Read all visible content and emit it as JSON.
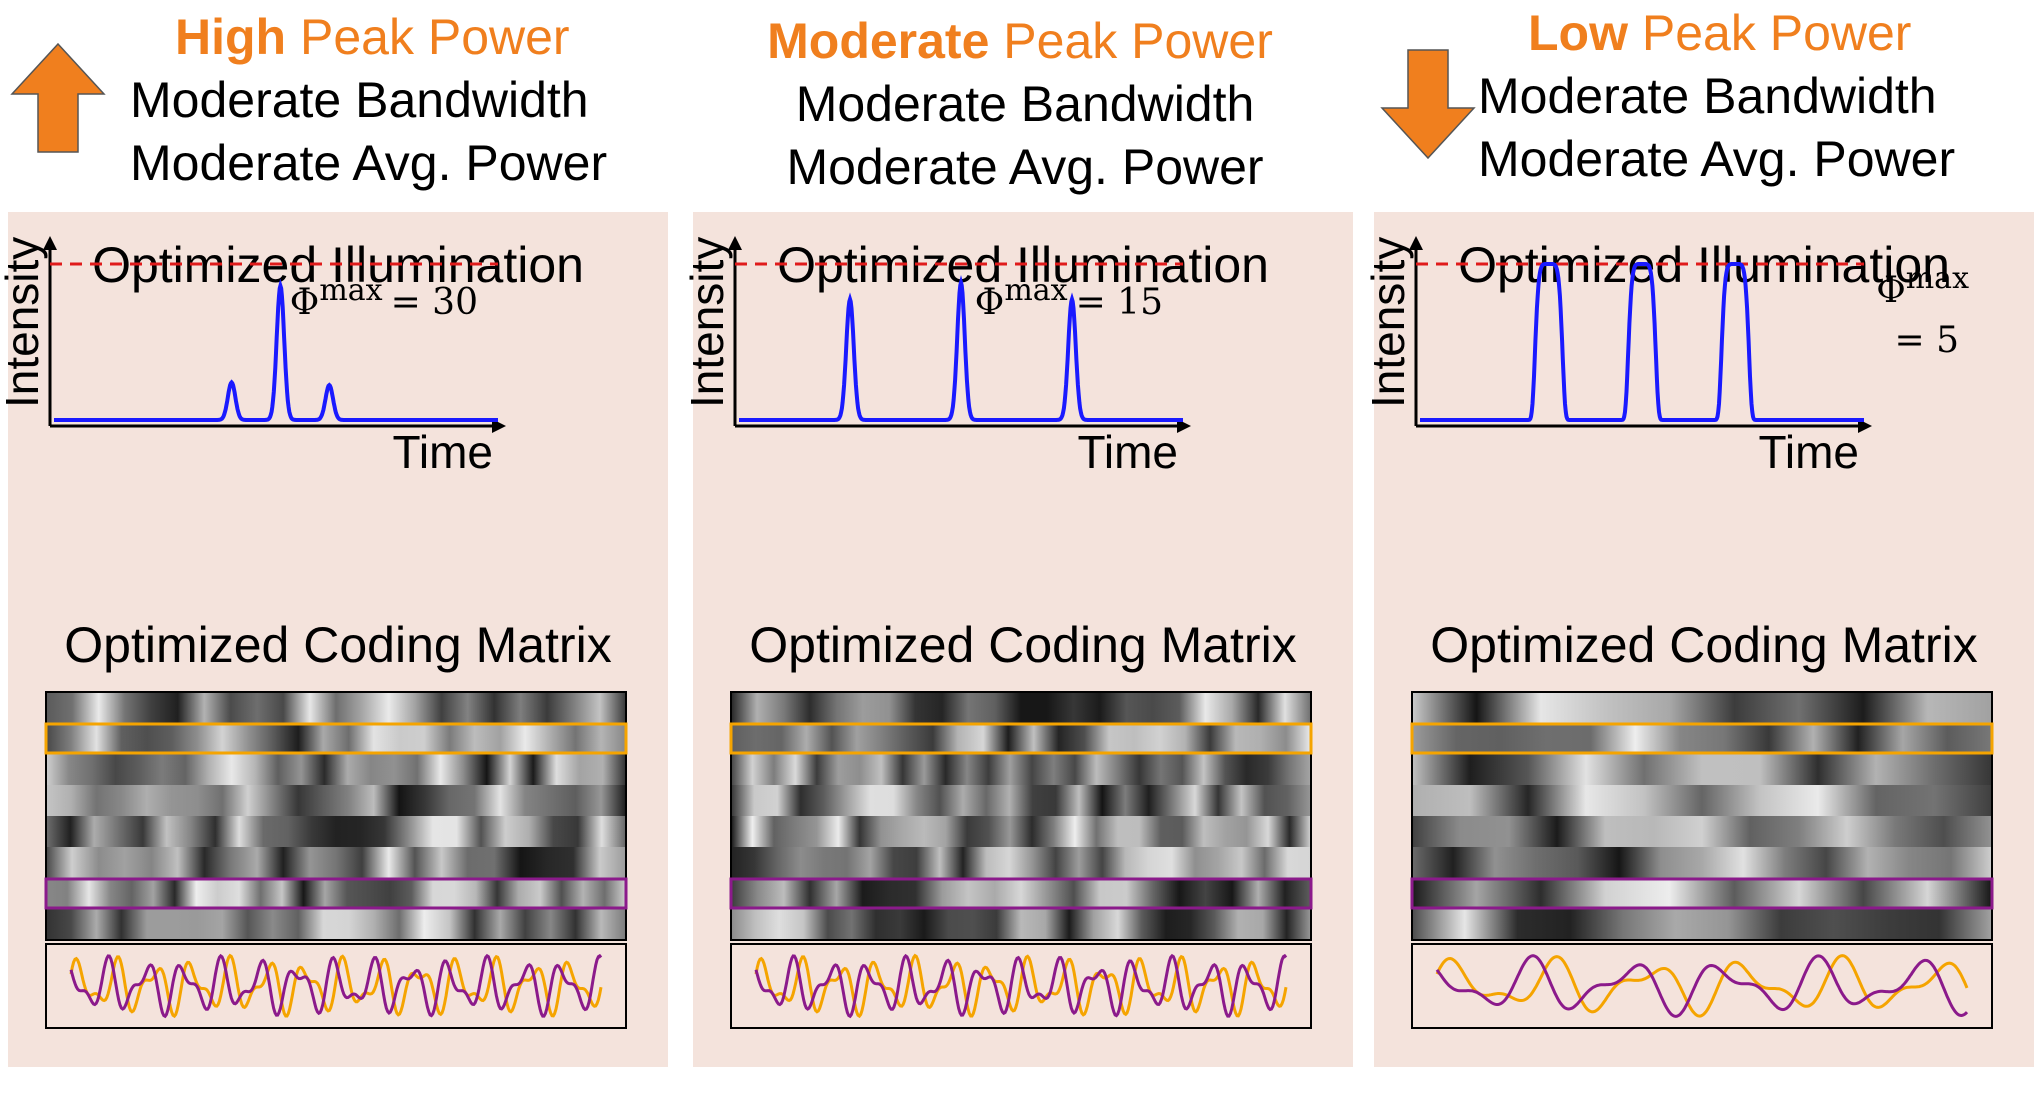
{
  "columns": [
    {
      "id": "high",
      "peak_bold": "High",
      "peak_rest": " Peak Power",
      "bandwidth": "Moderate Bandwidth",
      "avg_power": "Moderate Avg. Power",
      "arrow": "up-arrow-icon",
      "plot_title": "Optimized Illumination",
      "ylabel": "Intensity",
      "xlabel": "Time",
      "phi_symbol": "Φ",
      "phi_sup": "max",
      "phi_value": "= 30",
      "matrix_title": "Optimized Coding Matrix"
    },
    {
      "id": "moderate",
      "peak_bold": "Moderate",
      "peak_rest": " Peak Power",
      "bandwidth": "Moderate Bandwidth",
      "avg_power": "Moderate Avg. Power",
      "arrow": "",
      "plot_title": "Optimized Illumination",
      "ylabel": "Intensity",
      "xlabel": "Time",
      "phi_symbol": "Φ",
      "phi_sup": "max",
      "phi_value": "= 15",
      "matrix_title": "Optimized Coding Matrix"
    },
    {
      "id": "low",
      "peak_bold": "Low",
      "peak_rest": " Peak Power",
      "bandwidth": "Moderate Bandwidth",
      "avg_power": "Moderate Avg. Power",
      "arrow": "down-arrow-icon",
      "plot_title": "Optimized Illumination",
      "ylabel": "Intensity",
      "xlabel": "Time",
      "phi_symbol": "Φ",
      "phi_sup": "max",
      "phi_value": "= 5",
      "matrix_title": "Optimized Coding Matrix"
    }
  ],
  "colors": {
    "accent_orange": "#f07f1e",
    "panel_bg": "#f4e3dc",
    "illumination_curve": "#1a1aff",
    "max_line": "#e01b1b",
    "highlight_orange": "#f5a400",
    "highlight_purple": "#8b1a8b"
  }
}
